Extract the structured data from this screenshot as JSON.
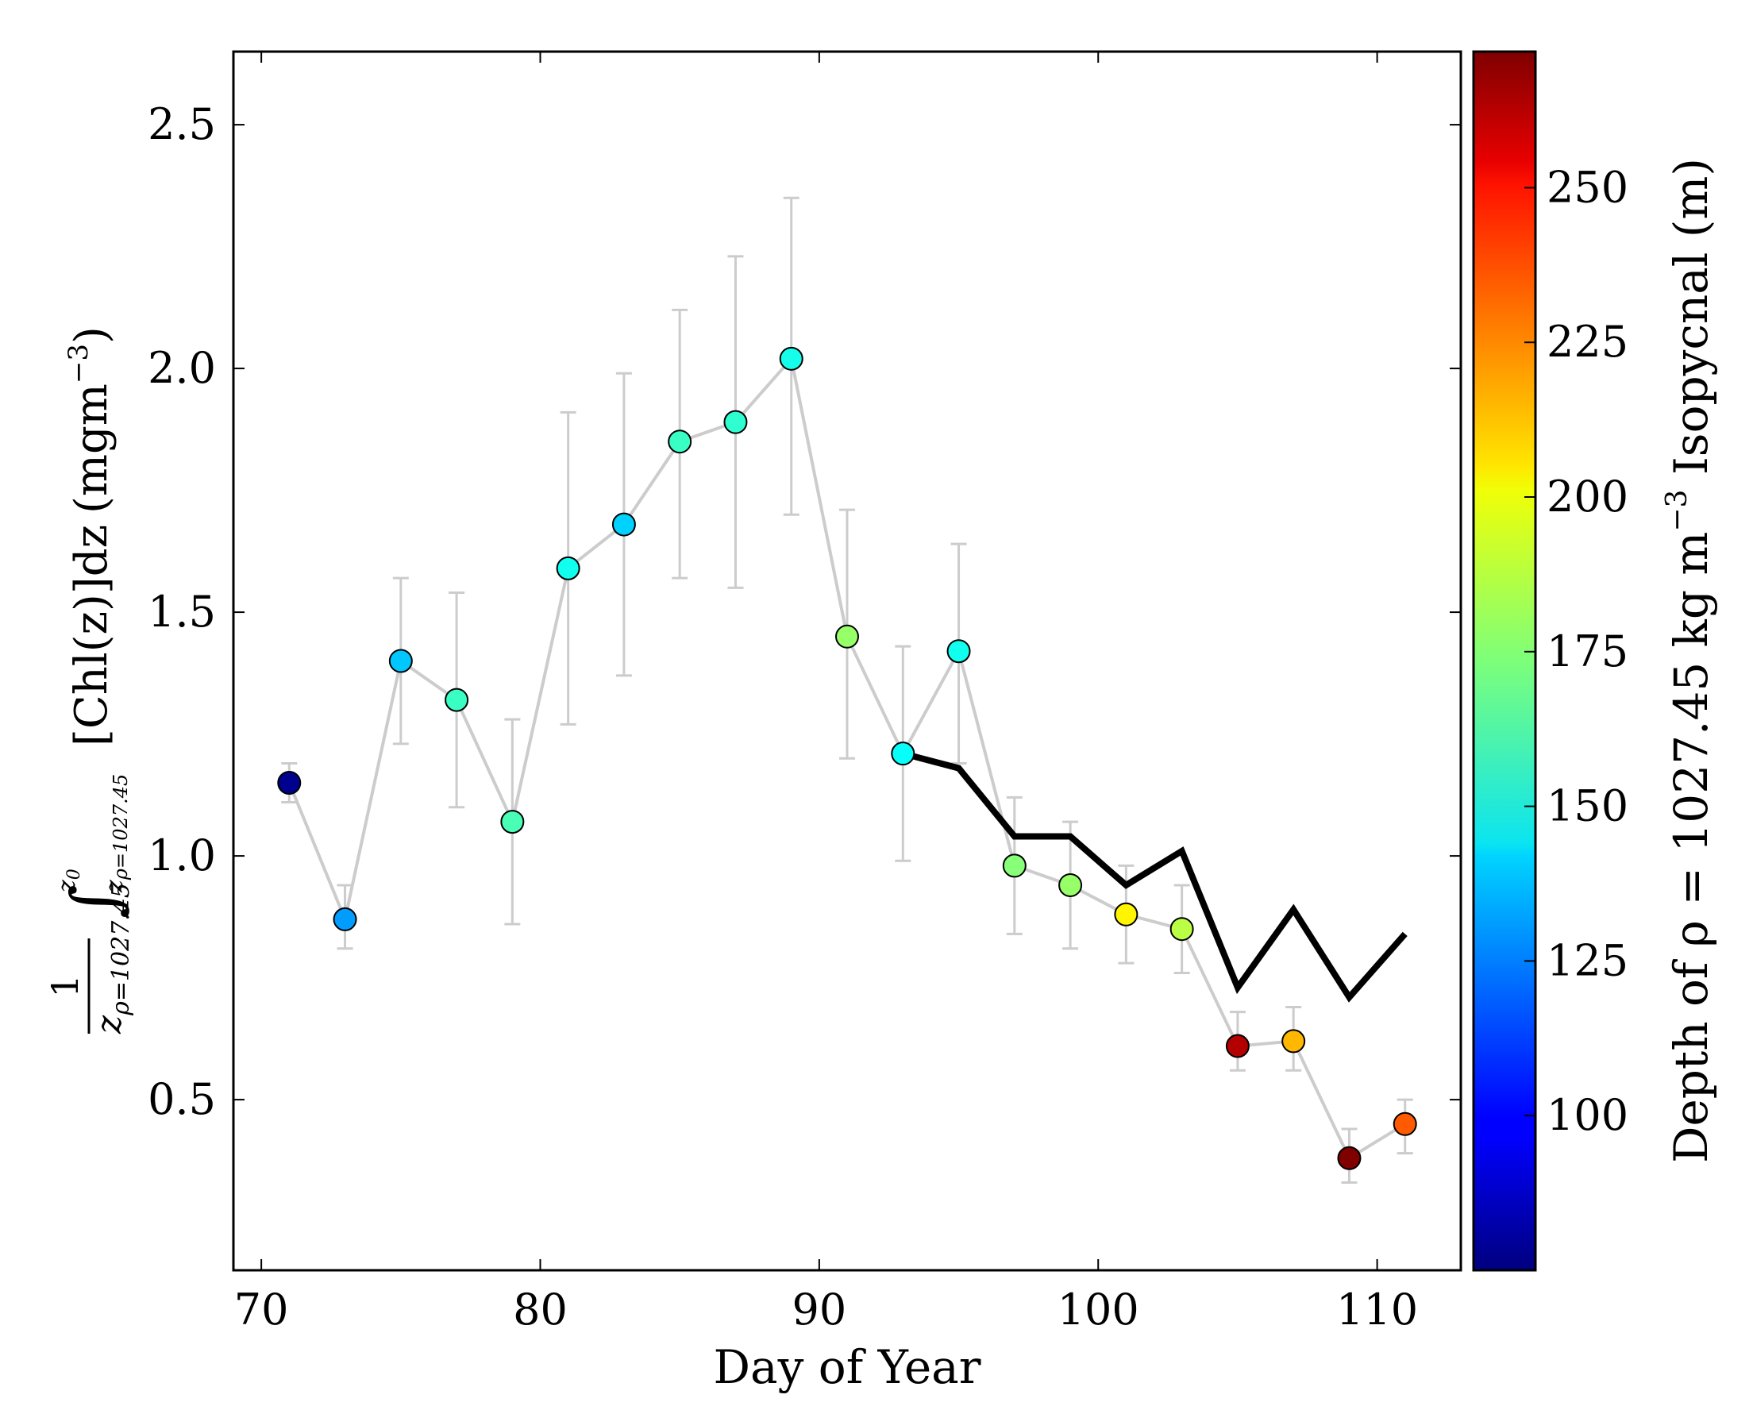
{
  "chart_data": {
    "type": "scatter",
    "xlabel": "Day of Year",
    "ylabel": {
      "frac_num": "1",
      "frac_den": "z",
      "frac_den_sub": "ρ=1027.45",
      "integral_upper": "z",
      "integral_upper_sub": "0",
      "integral_lower": "z",
      "integral_lower_sub": "ρ=1027.45",
      "integrand": "[Chl(z)]dz",
      "units": "(mgm",
      "units_exp": "−3",
      "units_close": ")"
    },
    "xlim": [
      69,
      113
    ],
    "ylim": [
      0.15,
      2.65
    ],
    "xticks": [
      70,
      80,
      90,
      100,
      110
    ],
    "yticks": [
      0.5,
      1.0,
      1.5,
      2.0,
      2.5
    ],
    "ytick_labels": [
      "0.5",
      "1.0",
      "1.5",
      "2.0",
      "2.5"
    ],
    "colorbar": {
      "label": "Depth of ρ = 1027.45 kg m",
      "label_exp": "−3",
      "label_end": " Isopycnal (m)",
      "range": [
        75,
        272
      ],
      "ticks": [
        100,
        125,
        150,
        175,
        200,
        225,
        250
      ],
      "colormap": "jet"
    },
    "series": [
      {
        "kind": "points_with_errorbars",
        "x": [
          71,
          73,
          75,
          77,
          79,
          81,
          83,
          85,
          87,
          89,
          91,
          93,
          95,
          97,
          99,
          101,
          103,
          105,
          107,
          109,
          111
        ],
        "y": [
          1.15,
          0.87,
          1.4,
          1.32,
          1.07,
          1.59,
          1.68,
          1.85,
          1.89,
          2.02,
          1.45,
          1.21,
          1.42,
          0.98,
          0.94,
          0.88,
          0.85,
          0.61,
          0.62,
          0.38,
          0.45
        ],
        "yerr_low": [
          1.11,
          0.81,
          1.23,
          1.1,
          0.86,
          1.27,
          1.37,
          1.57,
          1.55,
          1.7,
          1.2,
          0.99,
          1.19,
          0.84,
          0.81,
          0.78,
          0.76,
          0.56,
          0.56,
          0.33,
          0.39
        ],
        "yerr_high": [
          1.19,
          0.94,
          1.57,
          1.54,
          1.28,
          1.91,
          1.99,
          2.12,
          2.23,
          2.35,
          1.71,
          1.43,
          1.64,
          1.12,
          1.07,
          0.98,
          0.94,
          0.68,
          0.69,
          0.44,
          0.5
        ],
        "depth": [
          78,
          130,
          138,
          160,
          163,
          152,
          140,
          160,
          158,
          153,
          178,
          150,
          152,
          175,
          178,
          200,
          185,
          262,
          212,
          272,
          230
        ],
        "line_color": "#cccccc",
        "errorbar_color": "#cccccc"
      },
      {
        "kind": "line",
        "x": [
          93,
          95,
          97,
          99,
          101,
          103,
          105,
          107,
          109,
          111
        ],
        "y": [
          1.21,
          1.18,
          1.04,
          1.04,
          0.94,
          1.01,
          0.73,
          0.89,
          0.71,
          0.84
        ],
        "color": "#000000"
      }
    ]
  }
}
